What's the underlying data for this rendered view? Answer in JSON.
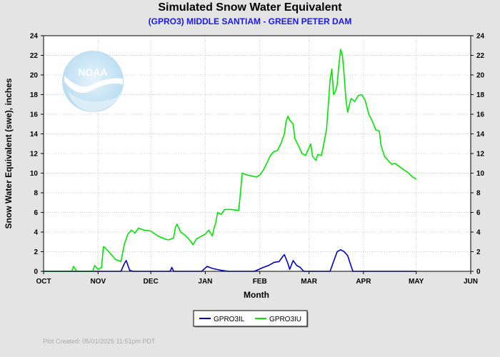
{
  "title": "Simulated Snow Water Equivalent",
  "subtitle": "(GPRO3) MIDDLE SANTIAM - GREEN PETER DAM",
  "footer": "Plot Created: 05/01/2025 11:51pm PDT",
  "logo_text": "NOAA",
  "colors": {
    "background": "#e4e4e4",
    "plot_bg": "#ffffff",
    "grid": "#c8c8c8",
    "title": "#000000",
    "subtitle": "#1a1ae6",
    "footer": "#a8a8a8"
  },
  "chart_data": {
    "type": "line",
    "title": "Simulated Snow Water Equivalent",
    "subtitle": "(GPRO3) MIDDLE SANTIAM - GREEN PETER DAM",
    "xlabel": "Month",
    "ylabel": "Snow Water Equivalent (swe),  inches",
    "xlim": [
      "2024-10-01",
      "2025-06-01"
    ],
    "ylim": [
      0,
      24
    ],
    "x_ticks": [
      "OCT",
      "NOV",
      "DEC",
      "JAN",
      "FEB",
      "MAR",
      "APR",
      "MAY",
      "JUN"
    ],
    "y_ticks": [
      0,
      2,
      4,
      6,
      8,
      10,
      12,
      14,
      16,
      18,
      20,
      22,
      24
    ],
    "grid": true,
    "legend_position": "bottom-center",
    "series": [
      {
        "name": "GPRO3IL",
        "color": "#0000cc",
        "points": [
          [
            "2024-10-01",
            0
          ],
          [
            "2024-11-14",
            0
          ],
          [
            "2024-11-16",
            0.8
          ],
          [
            "2024-11-17",
            1.1
          ],
          [
            "2024-11-18",
            0.6
          ],
          [
            "2024-11-19",
            0.1
          ],
          [
            "2024-11-21",
            0
          ],
          [
            "2024-12-12",
            0
          ],
          [
            "2024-12-13",
            0.4
          ],
          [
            "2024-12-14",
            0
          ],
          [
            "2024-12-30",
            0
          ],
          [
            "2025-01-02",
            0.5
          ],
          [
            "2025-01-05",
            0.3
          ],
          [
            "2025-01-10",
            0.1
          ],
          [
            "2025-01-14",
            0
          ],
          [
            "2025-01-29",
            0
          ],
          [
            "2025-02-03",
            0.4
          ],
          [
            "2025-02-06",
            0.6
          ],
          [
            "2025-02-09",
            0.9
          ],
          [
            "2025-02-12",
            1.0
          ],
          [
            "2025-02-14",
            1.5
          ],
          [
            "2025-02-15",
            1.7
          ],
          [
            "2025-02-17",
            0.8
          ],
          [
            "2025-02-18",
            0.2
          ],
          [
            "2025-02-20",
            1.1
          ],
          [
            "2025-02-22",
            0.6
          ],
          [
            "2025-02-24",
            0.4
          ],
          [
            "2025-02-26",
            0
          ],
          [
            "2025-03-13",
            0
          ],
          [
            "2025-03-15",
            1.0
          ],
          [
            "2025-03-17",
            2.0
          ],
          [
            "2025-03-19",
            2.2
          ],
          [
            "2025-03-21",
            2.0
          ],
          [
            "2025-03-23",
            1.6
          ],
          [
            "2025-03-25",
            0.5
          ],
          [
            "2025-03-26",
            0
          ],
          [
            "2025-05-01",
            0
          ]
        ]
      },
      {
        "name": "GPRO3IU",
        "color": "#00e600",
        "points": [
          [
            "2024-10-01",
            0
          ],
          [
            "2024-10-17",
            0
          ],
          [
            "2024-10-18",
            0.5
          ],
          [
            "2024-10-20",
            0
          ],
          [
            "2024-10-29",
            0
          ],
          [
            "2024-10-30",
            0.6
          ],
          [
            "2024-11-01",
            0.2
          ],
          [
            "2024-11-03",
            0.4
          ],
          [
            "2024-11-04",
            2.5
          ],
          [
            "2024-11-05",
            2.4
          ],
          [
            "2024-11-07",
            2.0
          ],
          [
            "2024-11-09",
            1.6
          ],
          [
            "2024-11-11",
            1.2
          ],
          [
            "2024-11-14",
            1.0
          ],
          [
            "2024-11-16",
            2.8
          ],
          [
            "2024-11-18",
            3.8
          ],
          [
            "2024-11-20",
            4.2
          ],
          [
            "2024-11-22",
            3.9
          ],
          [
            "2024-11-24",
            4.4
          ],
          [
            "2024-11-27",
            4.2
          ],
          [
            "2024-12-01",
            4.1
          ],
          [
            "2024-12-05",
            3.6
          ],
          [
            "2024-12-09",
            3.3
          ],
          [
            "2024-12-11",
            3.2
          ],
          [
            "2024-12-14",
            3.4
          ],
          [
            "2024-12-15",
            4.5
          ],
          [
            "2024-12-16",
            4.8
          ],
          [
            "2024-12-18",
            4.0
          ],
          [
            "2024-12-21",
            3.6
          ],
          [
            "2024-12-24",
            3.0
          ],
          [
            "2024-12-25",
            2.7
          ],
          [
            "2024-12-27",
            3.3
          ],
          [
            "2025-01-01",
            3.8
          ],
          [
            "2025-01-03",
            4.2
          ],
          [
            "2025-01-05",
            3.6
          ],
          [
            "2025-01-06",
            4.4
          ],
          [
            "2025-01-07",
            5.0
          ],
          [
            "2025-01-08",
            6.0
          ],
          [
            "2025-01-10",
            5.8
          ],
          [
            "2025-01-12",
            6.3
          ],
          [
            "2025-01-16",
            6.3
          ],
          [
            "2025-01-20",
            6.2
          ],
          [
            "2025-01-21",
            8.0
          ],
          [
            "2025-01-22",
            10.0
          ],
          [
            "2025-01-25",
            9.8
          ],
          [
            "2025-01-28",
            9.7
          ],
          [
            "2025-01-30",
            9.6
          ],
          [
            "2025-02-01",
            9.8
          ],
          [
            "2025-02-03",
            10.3
          ],
          [
            "2025-02-05",
            11.0
          ],
          [
            "2025-02-07",
            11.8
          ],
          [
            "2025-02-09",
            12.2
          ],
          [
            "2025-02-11",
            12.3
          ],
          [
            "2025-02-13",
            13.0
          ],
          [
            "2025-02-15",
            14.0
          ],
          [
            "2025-02-16",
            15.3
          ],
          [
            "2025-02-17",
            15.8
          ],
          [
            "2025-02-18",
            15.4
          ],
          [
            "2025-02-20",
            15.0
          ],
          [
            "2025-02-21",
            13.5
          ],
          [
            "2025-02-23",
            12.8
          ],
          [
            "2025-02-25",
            12.0
          ],
          [
            "2025-02-27",
            11.8
          ],
          [
            "2025-03-01",
            12.6
          ],
          [
            "2025-03-02",
            13.0
          ],
          [
            "2025-03-03",
            11.7
          ],
          [
            "2025-03-04",
            11.5
          ],
          [
            "2025-03-05",
            11.3
          ],
          [
            "2025-03-06",
            11.9
          ],
          [
            "2025-03-08",
            11.8
          ],
          [
            "2025-03-09",
            12.6
          ],
          [
            "2025-03-11",
            14.5
          ],
          [
            "2025-03-12",
            17.0
          ],
          [
            "2025-03-13",
            19.5
          ],
          [
            "2025-03-14",
            20.6
          ],
          [
            "2025-03-15",
            18.0
          ],
          [
            "2025-03-16",
            18.3
          ],
          [
            "2025-03-17",
            19.0
          ],
          [
            "2025-03-18",
            21.0
          ],
          [
            "2025-03-19",
            22.6
          ],
          [
            "2025-03-20",
            22.0
          ],
          [
            "2025-03-21",
            20.0
          ],
          [
            "2025-03-22",
            17.5
          ],
          [
            "2025-03-23",
            16.2
          ],
          [
            "2025-03-24",
            17.0
          ],
          [
            "2025-03-25",
            17.6
          ],
          [
            "2025-03-27",
            17.3
          ],
          [
            "2025-03-29",
            17.9
          ],
          [
            "2025-03-31",
            18.0
          ],
          [
            "2025-04-02",
            17.4
          ],
          [
            "2025-04-04",
            16.0
          ],
          [
            "2025-04-06",
            15.3
          ],
          [
            "2025-04-08",
            14.4
          ],
          [
            "2025-04-10",
            14.3
          ],
          [
            "2025-04-11",
            12.8
          ],
          [
            "2025-04-13",
            11.7
          ],
          [
            "2025-04-15",
            11.3
          ],
          [
            "2025-04-17",
            10.9
          ],
          [
            "2025-04-19",
            11.0
          ],
          [
            "2025-04-22",
            10.6
          ],
          [
            "2025-04-26",
            10.1
          ],
          [
            "2025-04-29",
            9.6
          ],
          [
            "2025-05-01",
            9.4
          ]
        ]
      }
    ]
  }
}
